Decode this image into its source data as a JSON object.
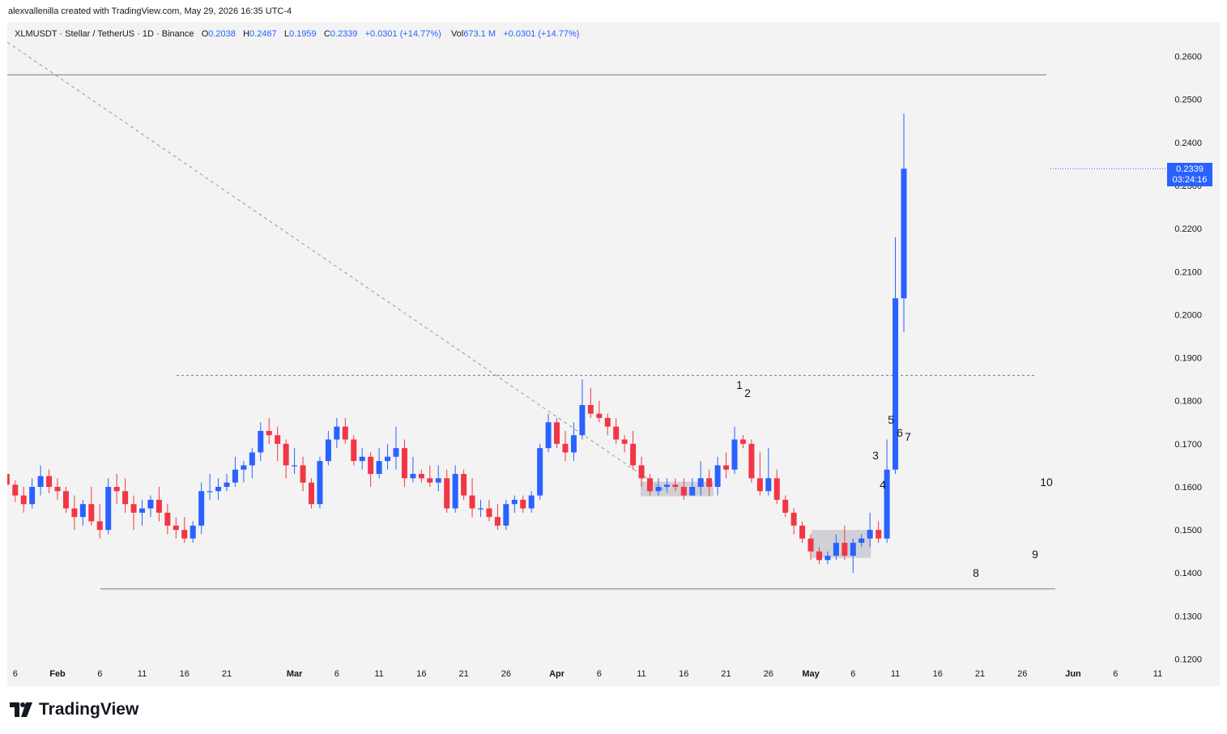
{
  "header": {
    "created_by": "alexvallenilla created with TradingView.com, May 29, 2026 16:35 UTC-4"
  },
  "legend": {
    "symbol": "XLMUSDT · Stellar / TetherUS · 1D · Binance",
    "o_label": "O",
    "o_value": "0.2038",
    "h_label": "H",
    "h_value": "0.2467",
    "l_label": "L",
    "l_value": "0.1959",
    "c_label": "C",
    "c_value": "0.2339",
    "change": "+0.0301 (+14.77%)",
    "vol_label": "Vol",
    "vol_value": "673.1 M",
    "vol_change": "+0.0301 (+14.77%)"
  },
  "price_tag": {
    "price": "0.2339",
    "countdown": "03:24:16"
  },
  "brand": {
    "name": "TradingView"
  },
  "colors": {
    "up": "#2962ff",
    "down": "#f23645",
    "background": "#f3f3f3",
    "text": "#131722"
  },
  "chart_data": {
    "type": "candlestick",
    "y_axis": {
      "position": "right",
      "ylim": [
        0.117,
        0.2685
      ],
      "ticks": [
        "0.2600",
        "0.2500",
        "0.2400",
        "0.2300",
        "0.2200",
        "0.2100",
        "0.2000",
        "0.1900",
        "0.1800",
        "0.1700",
        "0.1600",
        "0.1500",
        "0.1400",
        "0.1300",
        "0.1200"
      ]
    },
    "x_axis": {
      "ticks": [
        {
          "day": -25,
          "label": "6"
        },
        {
          "day": -20,
          "label": "Feb"
        },
        {
          "day": -15,
          "label": "6"
        },
        {
          "day": -10,
          "label": "11"
        },
        {
          "day": -5,
          "label": "16"
        },
        {
          "day": 0,
          "label": "21"
        },
        {
          "day": 8,
          "label": "Mar"
        },
        {
          "day": 13,
          "label": "6"
        },
        {
          "day": 18,
          "label": "11"
        },
        {
          "day": 23,
          "label": "16"
        },
        {
          "day": 28,
          "label": "21"
        },
        {
          "day": 33,
          "label": "26"
        },
        {
          "day": 39,
          "label": "Apr"
        },
        {
          "day": 44,
          "label": "6"
        },
        {
          "day": 49,
          "label": "11"
        },
        {
          "day": 54,
          "label": "16"
        },
        {
          "day": 59,
          "label": "21"
        },
        {
          "day": 64,
          "label": "26"
        },
        {
          "day": 69,
          "label": "May"
        },
        {
          "day": 74,
          "label": "6"
        },
        {
          "day": 79,
          "label": "11"
        },
        {
          "day": 84,
          "label": "16"
        },
        {
          "day": 89,
          "label": "21"
        },
        {
          "day": 94,
          "label": "26"
        },
        {
          "day": 100,
          "label": "Jun"
        },
        {
          "day": 105,
          "label": "6"
        },
        {
          "day": 110,
          "label": "11"
        }
      ]
    },
    "candles": [
      [
        0.163,
        0.1635,
        0.1595,
        0.1605
      ],
      [
        0.1605,
        0.1615,
        0.1565,
        0.158
      ],
      [
        0.158,
        0.16,
        0.154,
        0.156
      ],
      [
        0.156,
        0.162,
        0.155,
        0.16
      ],
      [
        0.16,
        0.165,
        0.158,
        0.1625
      ],
      [
        0.1625,
        0.164,
        0.1585,
        0.16
      ],
      [
        0.16,
        0.162,
        0.157,
        0.159
      ],
      [
        0.159,
        0.16,
        0.154,
        0.155
      ],
      [
        0.155,
        0.158,
        0.15,
        0.153
      ],
      [
        0.153,
        0.157,
        0.151,
        0.156
      ],
      [
        0.156,
        0.16,
        0.151,
        0.152
      ],
      [
        0.152,
        0.156,
        0.148,
        0.15
      ],
      [
        0.15,
        0.162,
        0.149,
        0.16
      ],
      [
        0.16,
        0.163,
        0.156,
        0.159
      ],
      [
        0.159,
        0.162,
        0.154,
        0.156
      ],
      [
        0.156,
        0.158,
        0.15,
        0.154
      ],
      [
        0.154,
        0.157,
        0.151,
        0.155
      ],
      [
        0.155,
        0.158,
        0.153,
        0.157
      ],
      [
        0.157,
        0.16,
        0.152,
        0.154
      ],
      [
        0.154,
        0.156,
        0.149,
        0.151
      ],
      [
        0.151,
        0.153,
        0.148,
        0.15
      ],
      [
        0.15,
        0.153,
        0.147,
        0.148
      ],
      [
        0.148,
        0.152,
        0.147,
        0.151
      ],
      [
        0.151,
        0.161,
        0.149,
        0.159
      ],
      [
        0.159,
        0.163,
        0.157,
        0.159
      ],
      [
        0.159,
        0.162,
        0.157,
        0.16
      ],
      [
        0.16,
        0.163,
        0.159,
        0.161
      ],
      [
        0.161,
        0.167,
        0.16,
        0.164
      ],
      [
        0.164,
        0.166,
        0.161,
        0.165
      ],
      [
        0.165,
        0.169,
        0.162,
        0.168
      ],
      [
        0.168,
        0.175,
        0.166,
        0.173
      ],
      [
        0.173,
        0.176,
        0.17,
        0.172
      ],
      [
        0.172,
        0.174,
        0.166,
        0.17
      ],
      [
        0.17,
        0.171,
        0.162,
        0.165
      ],
      [
        0.165,
        0.169,
        0.163,
        0.165
      ],
      [
        0.165,
        0.167,
        0.159,
        0.161
      ],
      [
        0.161,
        0.162,
        0.155,
        0.156
      ],
      [
        0.156,
        0.167,
        0.155,
        0.166
      ],
      [
        0.166,
        0.173,
        0.165,
        0.171
      ],
      [
        0.171,
        0.176,
        0.169,
        0.174
      ],
      [
        0.174,
        0.176,
        0.17,
        0.171
      ],
      [
        0.171,
        0.172,
        0.165,
        0.166
      ],
      [
        0.166,
        0.169,
        0.164,
        0.167
      ],
      [
        0.167,
        0.168,
        0.16,
        0.163
      ],
      [
        0.163,
        0.169,
        0.162,
        0.166
      ],
      [
        0.166,
        0.17,
        0.164,
        0.167
      ],
      [
        0.167,
        0.174,
        0.164,
        0.169
      ],
      [
        0.169,
        0.171,
        0.16,
        0.162
      ],
      [
        0.162,
        0.167,
        0.161,
        0.163
      ],
      [
        0.163,
        0.164,
        0.161,
        0.162
      ],
      [
        0.162,
        0.165,
        0.16,
        0.161
      ],
      [
        0.161,
        0.165,
        0.159,
        0.162
      ],
      [
        0.162,
        0.164,
        0.154,
        0.155
      ],
      [
        0.155,
        0.165,
        0.154,
        0.163
      ],
      [
        0.163,
        0.164,
        0.157,
        0.158
      ],
      [
        0.158,
        0.162,
        0.153,
        0.155
      ],
      [
        0.155,
        0.157,
        0.153,
        0.155
      ],
      [
        0.155,
        0.157,
        0.152,
        0.153
      ],
      [
        0.153,
        0.156,
        0.15,
        0.151
      ],
      [
        0.151,
        0.157,
        0.15,
        0.156
      ],
      [
        0.156,
        0.158,
        0.154,
        0.157
      ],
      [
        0.157,
        0.158,
        0.154,
        0.155
      ],
      [
        0.155,
        0.159,
        0.154,
        0.158
      ],
      [
        0.158,
        0.17,
        0.157,
        0.169
      ],
      [
        0.169,
        0.177,
        0.168,
        0.175
      ],
      [
        0.175,
        0.176,
        0.169,
        0.17
      ],
      [
        0.17,
        0.173,
        0.166,
        0.168
      ],
      [
        0.168,
        0.175,
        0.166,
        0.172
      ],
      [
        0.172,
        0.185,
        0.171,
        0.179
      ],
      [
        0.179,
        0.183,
        0.176,
        0.177
      ],
      [
        0.177,
        0.18,
        0.175,
        0.176
      ],
      [
        0.176,
        0.177,
        0.172,
        0.174
      ],
      [
        0.174,
        0.176,
        0.17,
        0.171
      ],
      [
        0.171,
        0.172,
        0.168,
        0.17
      ],
      [
        0.17,
        0.173,
        0.164,
        0.165
      ],
      [
        0.165,
        0.167,
        0.16,
        0.162
      ],
      [
        0.162,
        0.163,
        0.158,
        0.159
      ],
      [
        0.159,
        0.162,
        0.158,
        0.16
      ],
      [
        0.16,
        0.162,
        0.159,
        0.1605
      ],
      [
        0.1605,
        0.162,
        0.159,
        0.16
      ],
      [
        0.16,
        0.162,
        0.157,
        0.158
      ],
      [
        0.158,
        0.162,
        0.158,
        0.16
      ],
      [
        0.16,
        0.166,
        0.158,
        0.162
      ],
      [
        0.162,
        0.164,
        0.158,
        0.16
      ],
      [
        0.16,
        0.167,
        0.158,
        0.165
      ],
      [
        0.165,
        0.168,
        0.162,
        0.164
      ],
      [
        0.164,
        0.174,
        0.163,
        0.171
      ],
      [
        0.171,
        0.172,
        0.169,
        0.17
      ],
      [
        0.17,
        0.171,
        0.161,
        0.162
      ],
      [
        0.162,
        0.168,
        0.158,
        0.159
      ],
      [
        0.159,
        0.169,
        0.158,
        0.162
      ],
      [
        0.162,
        0.164,
        0.156,
        0.157
      ],
      [
        0.157,
        0.158,
        0.153,
        0.154
      ],
      [
        0.154,
        0.155,
        0.149,
        0.151
      ],
      [
        0.151,
        0.152,
        0.147,
        0.148
      ],
      [
        0.148,
        0.149,
        0.143,
        0.145
      ],
      [
        0.145,
        0.146,
        0.142,
        0.143
      ],
      [
        0.143,
        0.145,
        0.142,
        0.144
      ],
      [
        0.144,
        0.149,
        0.143,
        0.147
      ],
      [
        0.147,
        0.151,
        0.143,
        0.144
      ],
      [
        0.144,
        0.148,
        0.14,
        0.147
      ],
      [
        0.147,
        0.149,
        0.146,
        0.148
      ],
      [
        0.148,
        0.154,
        0.146,
        0.15
      ],
      [
        0.15,
        0.152,
        0.147,
        0.148
      ],
      [
        0.148,
        0.171,
        0.147,
        0.164
      ],
      [
        0.164,
        0.218,
        0.163,
        0.2038
      ],
      [
        0.2038,
        0.2467,
        0.1959,
        0.2339
      ]
    ],
    "lines": [
      {
        "kind": "horizontal",
        "style": "solid",
        "y": 0.2557
      },
      {
        "kind": "horizontal",
        "style": "dashed",
        "y": 0.1859
      },
      {
        "kind": "horizontal",
        "style": "solid",
        "y": 0.1363
      },
      {
        "kind": "diagonal",
        "style": "dashed"
      }
    ],
    "boxes": [
      {
        "y_top": 0.1612,
        "y_bottom": 0.1578
      },
      {
        "y_top": 0.15,
        "y_bottom": 0.1435
      }
    ],
    "annotations": [
      "1",
      "2",
      "3",
      "4",
      "5",
      "6",
      "7",
      "8",
      "9",
      "10"
    ]
  }
}
